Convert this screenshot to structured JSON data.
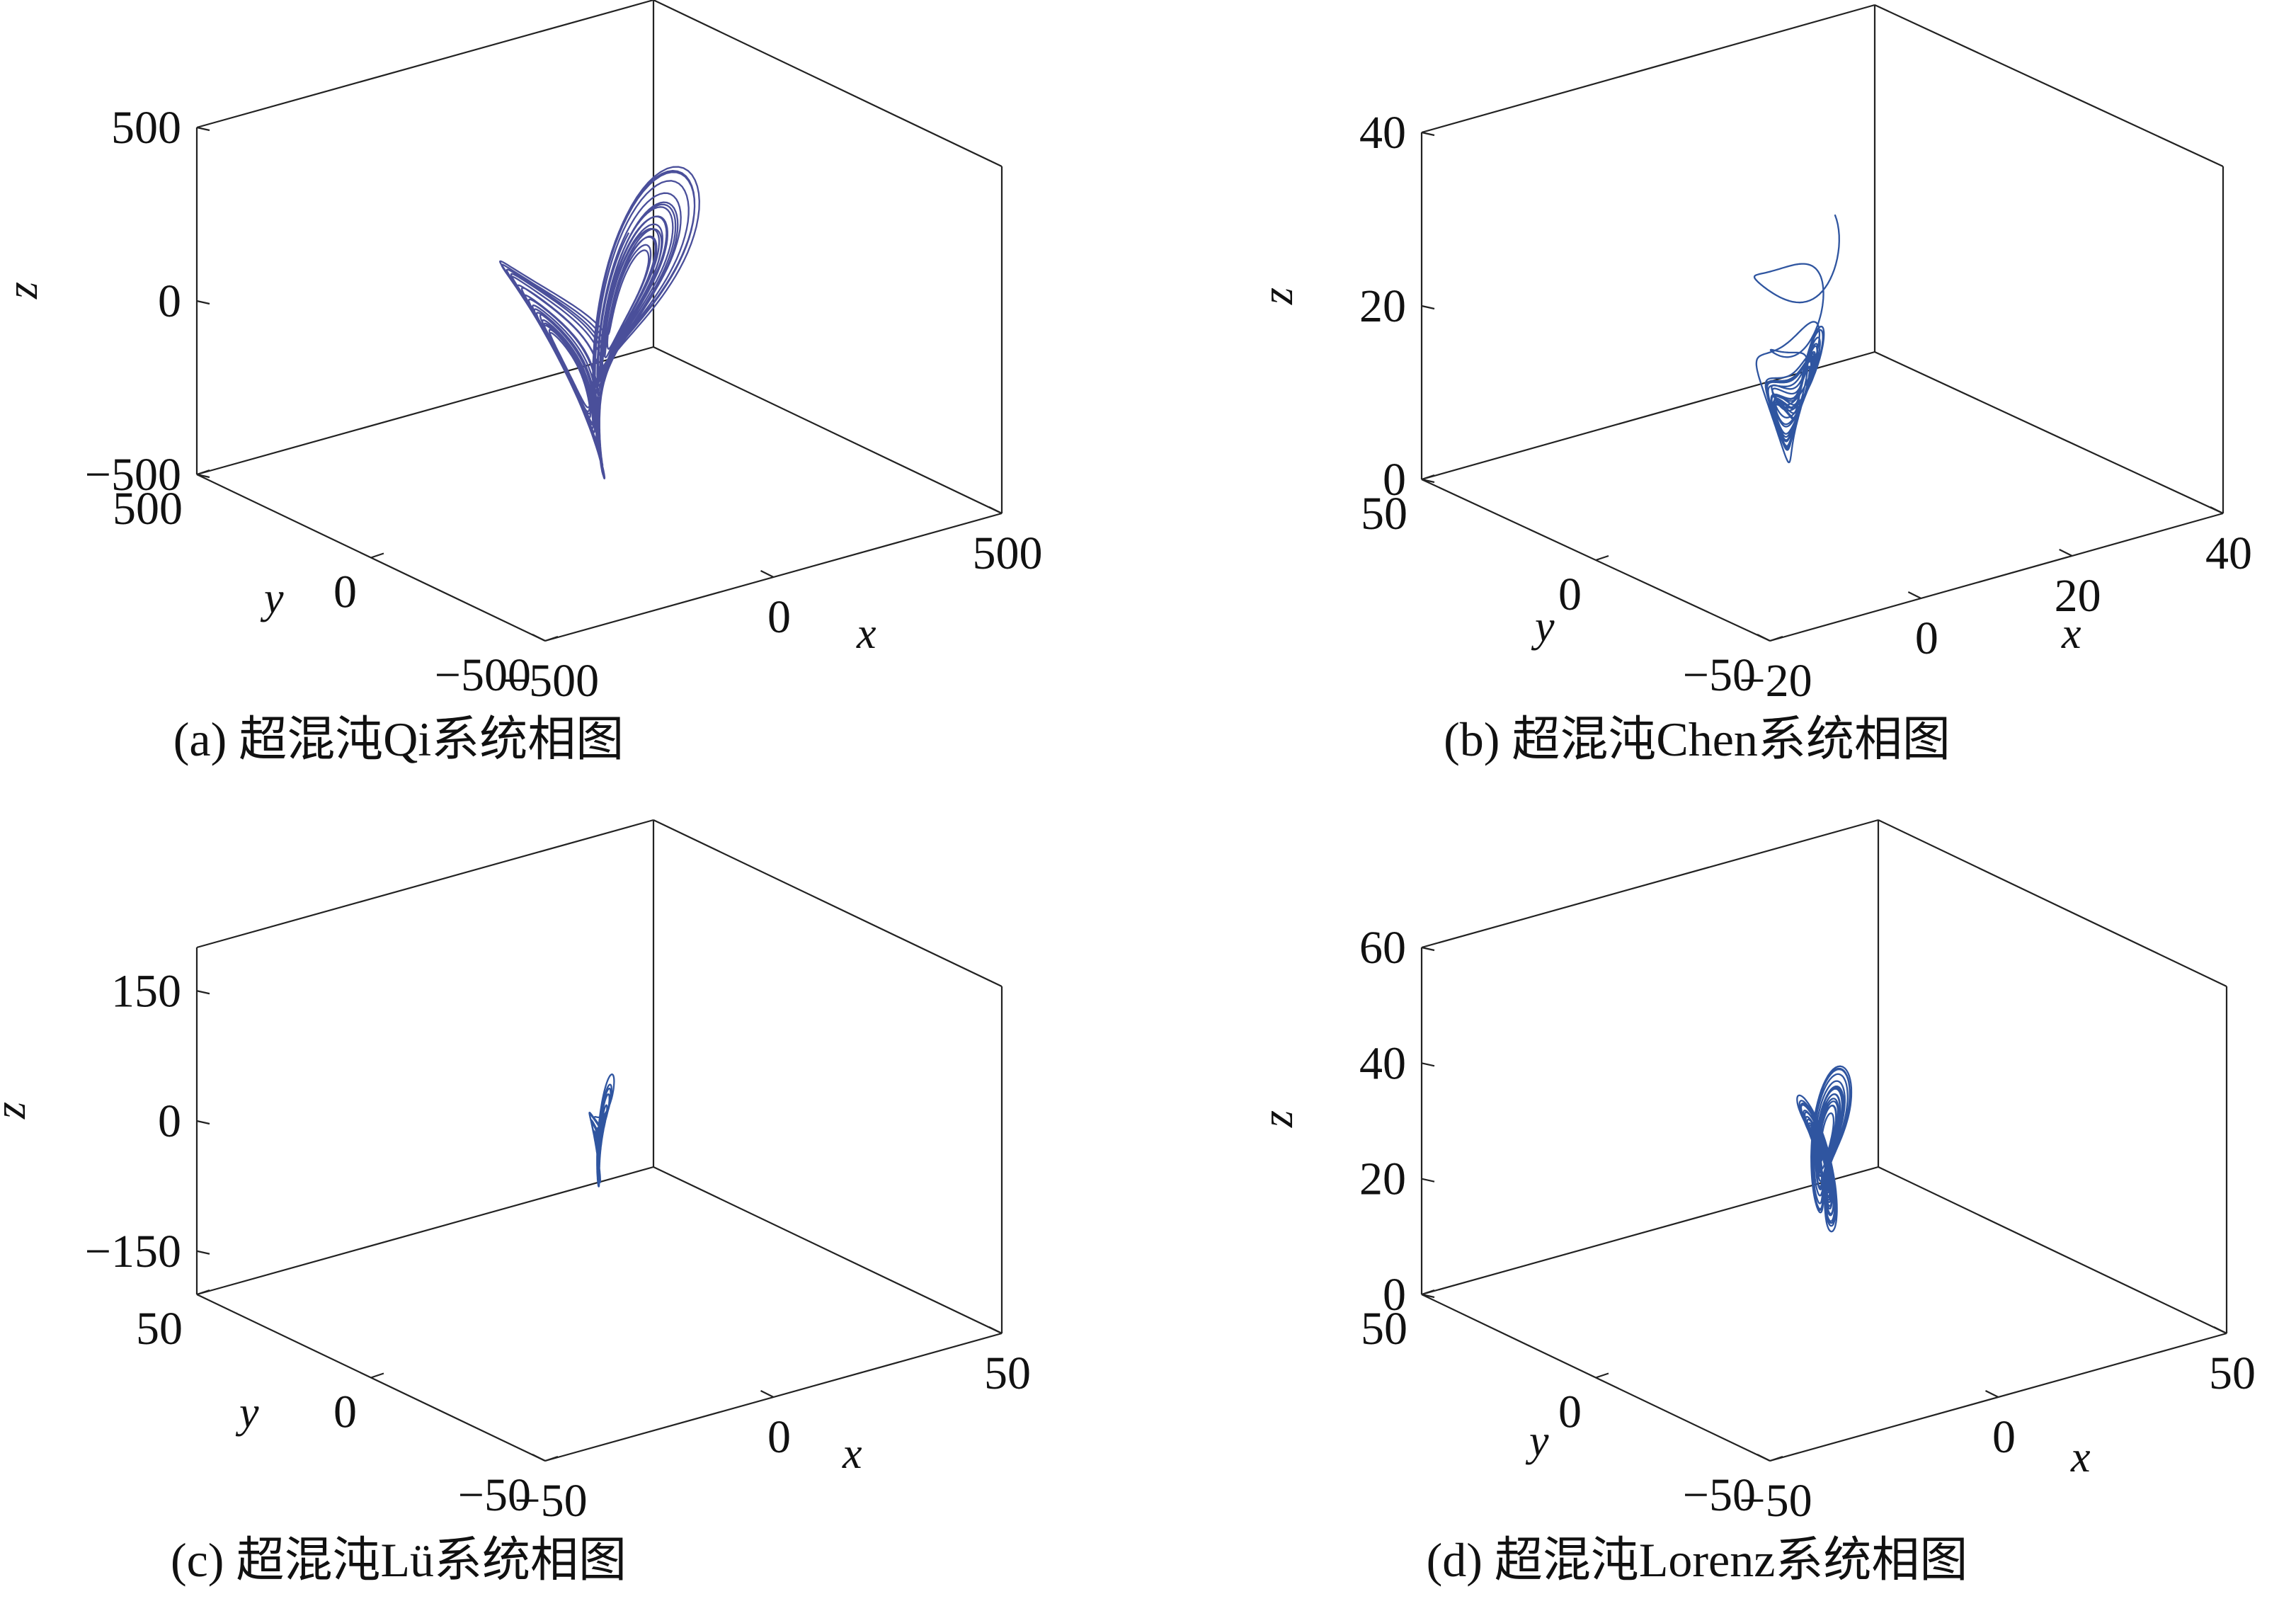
{
  "figure": {
    "panels": [
      {
        "id": "a",
        "caption": "(a) 超混沌Qi系统相图"
      },
      {
        "id": "b",
        "caption": "(b) 超混沌Chen系统相图"
      },
      {
        "id": "c",
        "caption": "(c) 超混沌Lü系统相图"
      },
      {
        "id": "d",
        "caption": "(d) 超混沌Lorenz系统相图"
      }
    ]
  },
  "chart_data": [
    {
      "type": "line",
      "subtype": "3d-phase-portrait",
      "title": "(a) 超混沌Qi系统相图",
      "xlabel": "x",
      "ylabel": "y",
      "zlabel": "z",
      "xlim": [
        -500,
        500
      ],
      "ylim": [
        -500,
        500
      ],
      "zlim": [
        -500,
        500
      ],
      "xticks": [
        {
          "v": -500,
          "label": "−500"
        },
        {
          "v": 0,
          "label": "0"
        },
        {
          "v": 500,
          "label": "500"
        }
      ],
      "yticks": [
        {
          "v": -500,
          "label": "−500"
        },
        {
          "v": 0,
          "label": "0"
        },
        {
          "v": 500,
          "label": "500"
        }
      ],
      "zticks": [
        {
          "v": -500,
          "label": "−500"
        },
        {
          "v": 0,
          "label": "0"
        },
        {
          "v": 500,
          "label": "500"
        }
      ],
      "series": [
        {
          "color": "#4a4f9a",
          "attractor": "qi",
          "center": [
            0,
            0,
            -40
          ],
          "scale": [
            300,
            300,
            320
          ],
          "points": 4200,
          "seed": 3
        }
      ]
    },
    {
      "type": "line",
      "subtype": "3d-phase-portrait",
      "title": "(b) 超混沌Chen系统相图",
      "xlabel": "x",
      "ylabel": "y",
      "zlabel": "z",
      "xlim": [
        -20,
        40
      ],
      "ylim": [
        -50,
        50
      ],
      "zlim": [
        0,
        40
      ],
      "xticks": [
        {
          "v": -20,
          "label": "−20"
        },
        {
          "v": 0,
          "label": "0"
        },
        {
          "v": 20,
          "label": "20"
        },
        {
          "v": 40,
          "label": "40"
        }
      ],
      "yticks": [
        {
          "v": -50,
          "label": "−50"
        },
        {
          "v": 0,
          "label": "0"
        },
        {
          "v": 50,
          "label": "50"
        }
      ],
      "zticks": [
        {
          "v": 0,
          "label": "0"
        },
        {
          "v": 20,
          "label": "20"
        },
        {
          "v": 40,
          "label": "40"
        }
      ],
      "series": [
        {
          "color": "#2f55a0",
          "attractor": "chen",
          "center": [
            6,
            0,
            19
          ],
          "scale": [
            9,
            14,
            12
          ],
          "points": 4200,
          "seed": 7
        }
      ]
    },
    {
      "type": "line",
      "subtype": "3d-phase-portrait",
      "title": "(c) 超混沌Lü系统相图",
      "xlabel": "x",
      "ylabel": "y",
      "zlabel": "z",
      "xlim": [
        -50,
        50
      ],
      "ylim": [
        -50,
        50
      ],
      "zlim": [
        -200,
        200
      ],
      "xticks": [
        {
          "v": -50,
          "label": "−50"
        },
        {
          "v": 0,
          "label": "0"
        },
        {
          "v": 50,
          "label": "50"
        }
      ],
      "yticks": [
        {
          "v": -50,
          "label": "−50"
        },
        {
          "v": 0,
          "label": "0"
        },
        {
          "v": 50,
          "label": "50"
        }
      ],
      "zticks": [
        {
          "v": -150,
          "label": "−150"
        },
        {
          "v": 0,
          "label": "0"
        },
        {
          "v": 150,
          "label": "150"
        }
      ],
      "series": [
        {
          "color": "#2f55a0",
          "attractor": "lu",
          "center": [
            0,
            0,
            5
          ],
          "scale": [
            6,
            7,
            60
          ],
          "points": 3400,
          "seed": 11
        }
      ]
    },
    {
      "type": "line",
      "subtype": "3d-phase-portrait",
      "title": "(d) 超混沌Lorenz系统相图",
      "xlabel": "x",
      "ylabel": "y",
      "zlabel": "z",
      "xlim": [
        -50,
        50
      ],
      "ylim": [
        -50,
        50
      ],
      "zlim": [
        0,
        60
      ],
      "xticks": [
        {
          "v": -50,
          "label": "−50"
        },
        {
          "v": 0,
          "label": "0"
        },
        {
          "v": 50,
          "label": "50"
        }
      ],
      "yticks": [
        {
          "v": -50,
          "label": "−50"
        },
        {
          "v": 0,
          "label": "0"
        },
        {
          "v": 50,
          "label": "50"
        }
      ],
      "zticks": [
        {
          "v": 0,
          "label": "0"
        },
        {
          "v": 20,
          "label": "20"
        },
        {
          "v": 40,
          "label": "40"
        },
        {
          "v": 60,
          "label": "60"
        }
      ],
      "series": [
        {
          "color": "#2f55a0",
          "attractor": "lorenz",
          "center": [
            0,
            0,
            28
          ],
          "scale": [
            8,
            12,
            12
          ],
          "points": 3800,
          "seed": 19
        }
      ]
    }
  ]
}
